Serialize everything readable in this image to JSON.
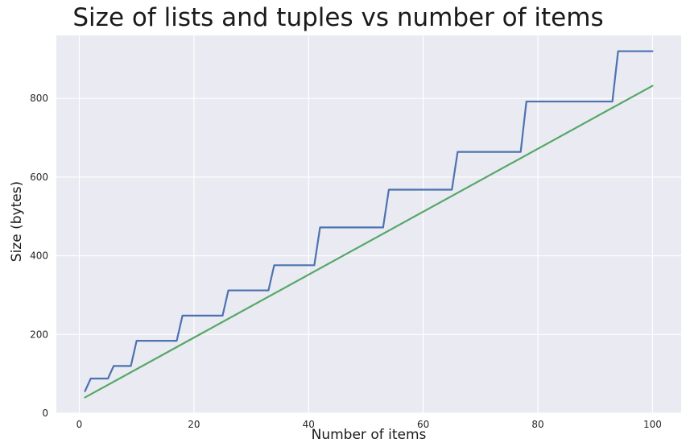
{
  "chart_data": {
    "type": "line",
    "title": "Size of lists and tuples vs number of items",
    "xlabel": "Number of items",
    "ylabel": "Size (bytes)",
    "xlim": [
      -4,
      105
    ],
    "ylim": [
      0,
      960
    ],
    "xticks": [
      0,
      20,
      40,
      60,
      80,
      100
    ],
    "yticks": [
      0,
      200,
      400,
      600,
      800
    ],
    "grid": true,
    "background": "#eaeaf2",
    "grid_color": "#ffffff",
    "series": [
      {
        "color": "#4c72b0",
        "x": [
          1,
          2,
          5,
          6,
          9,
          10,
          17,
          18,
          25,
          26,
          33,
          34,
          41,
          42,
          53,
          54,
          65,
          66,
          77,
          78,
          93,
          94,
          100
        ],
        "y": [
          56,
          88,
          88,
          120,
          120,
          184,
          184,
          248,
          248,
          312,
          312,
          376,
          376,
          472,
          472,
          568,
          568,
          664,
          664,
          792,
          792,
          920,
          920
        ]
      },
      {
        "color": "#55a868",
        "x": [
          1,
          100
        ],
        "y": [
          40,
          832
        ]
      }
    ]
  }
}
